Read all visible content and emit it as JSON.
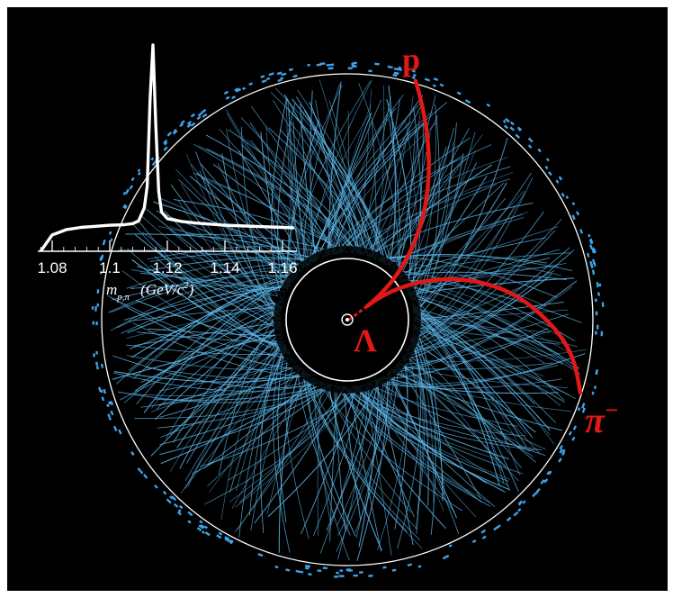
{
  "colors": {
    "background": "#000000",
    "frame": "#ffffff",
    "tracks": "#5ab4e6",
    "track_highlight": "#e01818",
    "detector_outline": "#ffffff",
    "hits": "#3fa2e8",
    "histogram_line": "#ffffff"
  },
  "labels": {
    "proton": "p",
    "lambda": "Λ",
    "pion_base": "π",
    "pion_charge": "−"
  },
  "inset": {
    "xlabel_mass": "m",
    "xlabel_sub": "p,π",
    "xlabel_sub_sup": "−",
    "xlabel_units": "(GeV/c",
    "xlabel_units_sup": "2",
    "xlabel_units_close": ")",
    "ticks": [
      "1.08",
      "1.1",
      "1.12",
      "1.14",
      "1.16"
    ]
  },
  "chart_data": {
    "type": "line",
    "title": "",
    "xlabel": "m p,π− (GeV/c²)",
    "ylabel": "",
    "xlim": [
      1.075,
      1.165
    ],
    "x": [
      1.076,
      1.08,
      1.085,
      1.09,
      1.095,
      1.1,
      1.105,
      1.108,
      1.11,
      1.112,
      1.113,
      1.114,
      1.115,
      1.116,
      1.117,
      1.118,
      1.12,
      1.125,
      1.13,
      1.135,
      1.14,
      1.15,
      1.16,
      1.164
    ],
    "y": [
      0,
      30,
      40,
      44,
      46,
      48,
      49,
      51,
      56,
      80,
      120,
      280,
      380,
      230,
      110,
      72,
      60,
      55,
      52,
      50,
      48,
      46,
      44,
      43
    ],
    "grid": false
  }
}
